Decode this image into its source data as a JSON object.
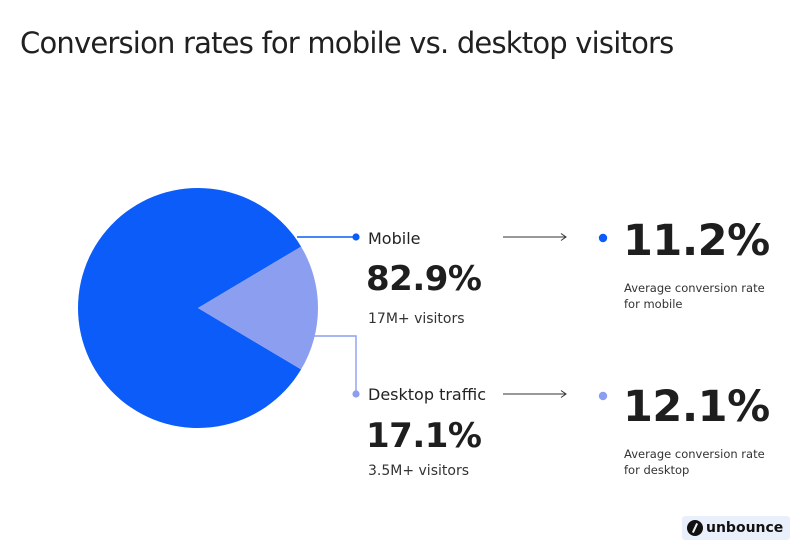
{
  "title": "Conversion rates for mobile vs. desktop visitors",
  "colors": {
    "mobile": "#0b5cf8",
    "desktop": "#8c9ef0"
  },
  "segments": [
    {
      "label": "Mobile",
      "share": "82.9%",
      "visitors": "17M+ visitors",
      "rate": "11.2%",
      "rate_desc": "Average conversion rate for mobile"
    },
    {
      "label": "Desktop traffic",
      "share": "17.1%",
      "visitors": "3.5M+ visitors",
      "rate": "12.1%",
      "rate_desc": "Average conversion rate for desktop"
    }
  ],
  "logo_text": "unbounce",
  "chart_data": {
    "type": "pie",
    "title": "Conversion rates for mobile vs. desktop visitors",
    "categories": [
      "Mobile",
      "Desktop traffic"
    ],
    "values": [
      82.9,
      17.1
    ],
    "visitors": [
      "17M+ visitors",
      "3.5M+ visitors"
    ],
    "conversion_rates": [
      11.2,
      12.1
    ],
    "legend": "right"
  }
}
